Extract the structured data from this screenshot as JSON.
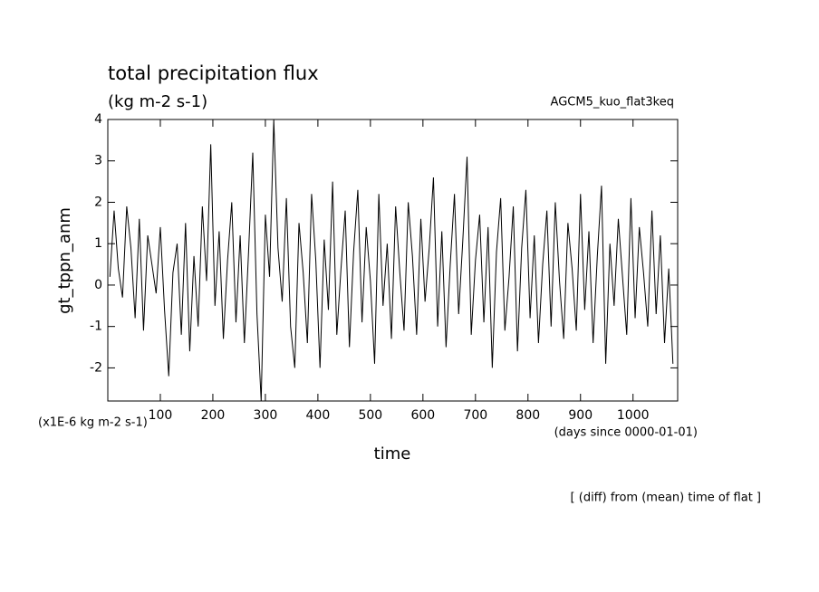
{
  "chart_data": {
    "type": "line",
    "title": "total precipitation flux",
    "subtitle": "(kg m-2 s-1)",
    "run_label": "AGCM5_kuo_flat3keq",
    "y_label": "gt_tppn_anm",
    "y_units": "(x1E-6 kg m-2 s-1)",
    "x_label": "time",
    "x_units": "(days since 0000-01-01)",
    "note": "[ (diff) from (mean) time of flat ]",
    "xlim": [
      0,
      1085
    ],
    "ylim": [
      -2.8,
      4
    ],
    "xticks": [
      100,
      200,
      300,
      400,
      500,
      600,
      700,
      800,
      900,
      1000
    ],
    "yticks": [
      -2,
      -1,
      0,
      1,
      2,
      3,
      4
    ],
    "grid": false,
    "x": [
      4,
      12,
      20,
      28,
      36,
      44,
      52,
      60,
      68,
      76,
      84,
      92,
      100,
      108,
      116,
      124,
      132,
      140,
      148,
      156,
      164,
      172,
      180,
      188,
      196,
      204,
      212,
      220,
      228,
      236,
      244,
      252,
      260,
      268,
      276,
      284,
      292,
      300,
      308,
      316,
      324,
      332,
      340,
      348,
      356,
      364,
      372,
      380,
      388,
      396,
      404,
      412,
      420,
      428,
      436,
      444,
      452,
      460,
      468,
      476,
      484,
      492,
      500,
      508,
      516,
      524,
      532,
      540,
      548,
      556,
      564,
      572,
      580,
      588,
      596,
      604,
      612,
      620,
      628,
      636,
      644,
      652,
      660,
      668,
      676,
      684,
      692,
      700,
      708,
      716,
      724,
      732,
      740,
      748,
      756,
      764,
      772,
      780,
      788,
      796,
      804,
      812,
      820,
      828,
      836,
      844,
      852,
      860,
      868,
      876,
      884,
      892,
      900,
      908,
      916,
      924,
      932,
      940,
      948,
      956,
      964,
      972,
      980,
      988,
      996,
      1004,
      1012,
      1020,
      1028,
      1036,
      1044,
      1052,
      1060,
      1068,
      1076
    ],
    "series": [
      {
        "color": "#000000",
        "values": [
          0.2,
          1.8,
          0.4,
          -0.3,
          1.9,
          0.9,
          -0.8,
          1.6,
          -1.1,
          1.2,
          0.5,
          -0.2,
          1.4,
          -0.6,
          -2.2,
          0.3,
          1.0,
          -1.2,
          1.5,
          -1.6,
          0.7,
          -1.0,
          1.9,
          0.1,
          3.4,
          -0.5,
          1.3,
          -1.3,
          0.6,
          2.0,
          -0.9,
          1.2,
          -1.4,
          0.8,
          3.2,
          -0.7,
          -2.8,
          1.7,
          0.2,
          4.0,
          0.9,
          -0.4,
          2.1,
          -1.0,
          -2.0,
          1.5,
          0.3,
          -1.4,
          2.2,
          0.6,
          -2.0,
          1.1,
          -0.6,
          2.5,
          -1.2,
          0.4,
          1.8,
          -1.5,
          0.8,
          2.3,
          -0.9,
          1.4,
          0.1,
          -1.9,
          2.2,
          -0.5,
          1.0,
          -1.3,
          1.9,
          0.3,
          -1.1,
          2.0,
          0.7,
          -1.2,
          1.6,
          -0.4,
          0.9,
          2.6,
          -1.0,
          1.3,
          -1.5,
          0.5,
          2.2,
          -0.7,
          1.1,
          3.1,
          -1.2,
          0.6,
          1.7,
          -0.9,
          1.4,
          -2.0,
          0.8,
          2.1,
          -1.1,
          0.2,
          1.9,
          -1.6,
          0.9,
          2.3,
          -0.8,
          1.2,
          -1.4,
          0.5,
          1.8,
          -1.0,
          2.0,
          0.1,
          -1.3,
          1.5,
          0.4,
          -1.1,
          2.2,
          -0.6,
          1.3,
          -1.4,
          0.7,
          2.4,
          -1.9,
          1.0,
          -0.5,
          1.6,
          0.2,
          -1.2,
          2.1,
          -0.8,
          1.4,
          0.3,
          -1.0,
          1.8,
          -0.7,
          1.2,
          -1.4,
          0.4,
          -1.9
        ]
      }
    ]
  }
}
